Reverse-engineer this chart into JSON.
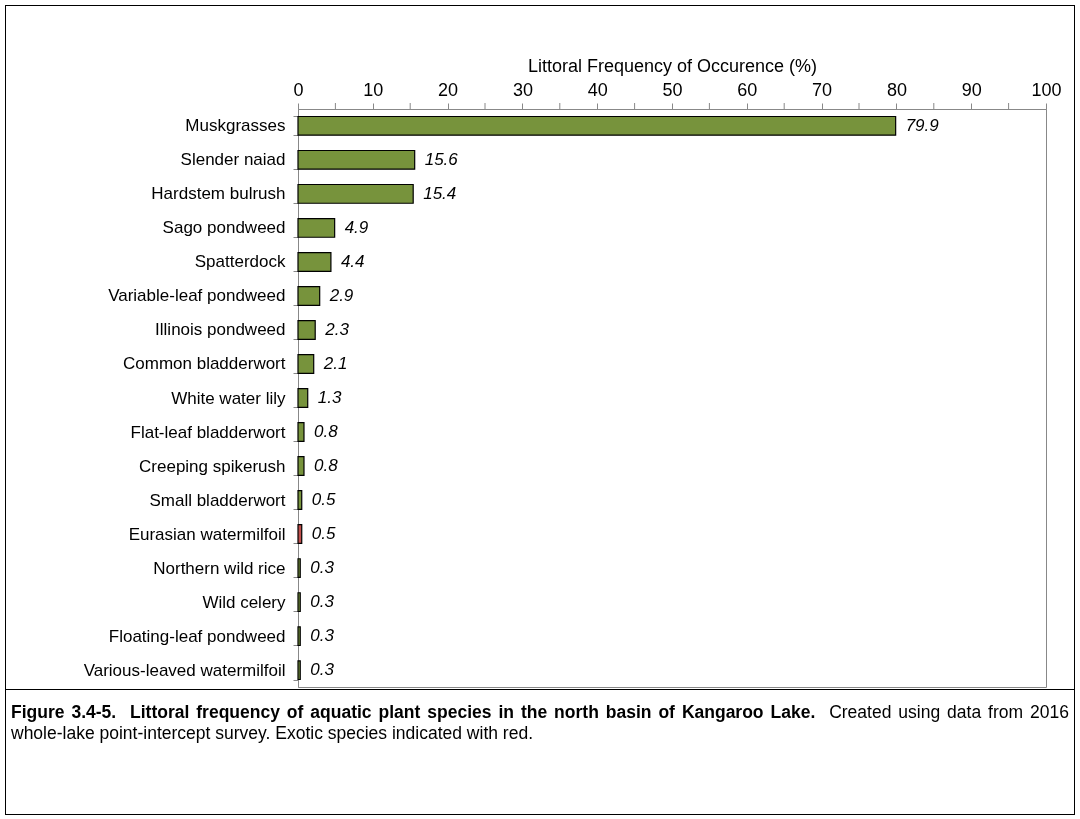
{
  "chart_data": {
    "type": "bar",
    "orientation": "horizontal",
    "xlabel": "Littoral Frequency of Occurence (%)",
    "categories": [
      "Muskgrasses",
      "Slender naiad",
      "Hardstem bulrush",
      "Sago pondweed",
      "Spatterdock",
      "Variable-leaf pondweed",
      "Illinois pondweed",
      "Common bladderwort",
      "White water lily",
      "Flat-leaf bladderwort",
      "Creeping spikerush",
      "Small bladderwort",
      "Eurasian watermilfoil",
      "Northern wild rice",
      "Wild celery",
      "Floating-leaf pondweed",
      "Various-leaved watermilfoil"
    ],
    "values": [
      79.9,
      15.6,
      15.4,
      4.9,
      4.4,
      2.9,
      2.3,
      2.1,
      1.3,
      0.8,
      0.8,
      0.5,
      0.5,
      0.3,
      0.3,
      0.3,
      0.3
    ],
    "colors": [
      "#77933c",
      "#77933c",
      "#77933c",
      "#77933c",
      "#77933c",
      "#77933c",
      "#77933c",
      "#77933c",
      "#77933c",
      "#77933c",
      "#77933c",
      "#77933c",
      "#c0504d",
      "#77933c",
      "#77933c",
      "#77933c",
      "#77933c"
    ],
    "data_labels": true,
    "xlim": [
      0,
      100
    ],
    "xticks": [
      0,
      {
        "value": 5,
        "label": null
      },
      10,
      {
        "value": 15,
        "label": null
      },
      20,
      {
        "value": 25,
        "label": null
      },
      30,
      {
        "value": 35,
        "label": null
      },
      40,
      {
        "value": 45,
        "label": null
      },
      50,
      {
        "value": 55,
        "label": null
      },
      60,
      {
        "value": 65,
        "label": null
      },
      70,
      {
        "value": 75,
        "label": null
      },
      80,
      {
        "value": 85,
        "label": null
      },
      90,
      {
        "value": 95,
        "label": null
      },
      100
    ],
    "grid": false,
    "annotations": [
      "Figure 3.4-5.  Littoral frequency of aquatic plant species in the north basin of Kangaroo Lake.",
      "Created using data from 2016 whole-lake point-intercept survey. Exotic species indicated with red."
    ]
  }
}
